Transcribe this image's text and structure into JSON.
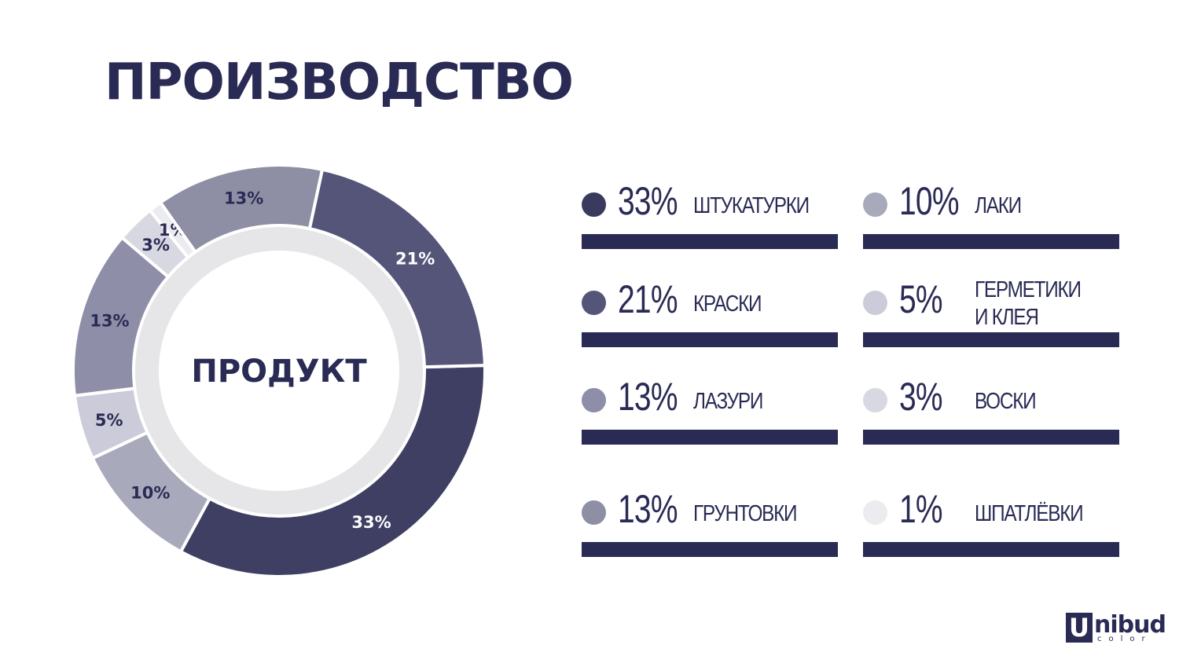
{
  "title": "ПРОИЗВОДСТВО",
  "chart_data": {
    "type": "pie",
    "center_label": "ПРОДУКТ",
    "slices": [
      {
        "label": "33%",
        "value": 33,
        "color": "#3f3f63"
      },
      {
        "label": "10%",
        "value": 10,
        "color": "#a9a9bc"
      },
      {
        "label": "5%",
        "value": 5,
        "color": "#cbcbd9"
      },
      {
        "label": "13%",
        "value": 13,
        "color": "#8e8ea8"
      },
      {
        "label": "3%",
        "value": 3,
        "color": "#d8d8e2"
      },
      {
        "label": "1%",
        "value": 1,
        "color": "#ebebf0"
      },
      {
        "label": "13%",
        "value": 13,
        "color": "#8e8ea4"
      },
      {
        "label": "21%",
        "value": 21,
        "color": "#55557a"
      }
    ],
    "label_colors": {
      "dark_slice": "#ffffff",
      "light_slice": "#2a2b55"
    }
  },
  "legend": {
    "left": [
      {
        "pct": "33%",
        "name": "ШТУКАТУРКИ",
        "color": "#3a3a5e"
      },
      {
        "pct": "21%",
        "name": "КРАСКИ",
        "color": "#55557a"
      },
      {
        "pct": "13%",
        "name": "ЛАЗУРИ",
        "color": "#8e8ea8"
      },
      {
        "pct": "13%",
        "name": "ГРУНТОВКИ",
        "color": "#8e8ea4"
      }
    ],
    "right": [
      {
        "pct": "10%",
        "name": "ЛАКИ",
        "color": "#a9a9bc"
      },
      {
        "pct": "5%",
        "name": "ГЕРМЕТИКИ\nИ КЛЕЯ",
        "color": "#cbcbd9"
      },
      {
        "pct": "3%",
        "name": "ВОСКИ",
        "color": "#d8d8e2"
      },
      {
        "pct": "1%",
        "name": "ШПАТЛЁВКИ",
        "color": "#ebebf0"
      }
    ],
    "bar_color": "#2a2b55"
  },
  "logo": {
    "letter": "U",
    "word": "nibud",
    "sub": "color"
  }
}
